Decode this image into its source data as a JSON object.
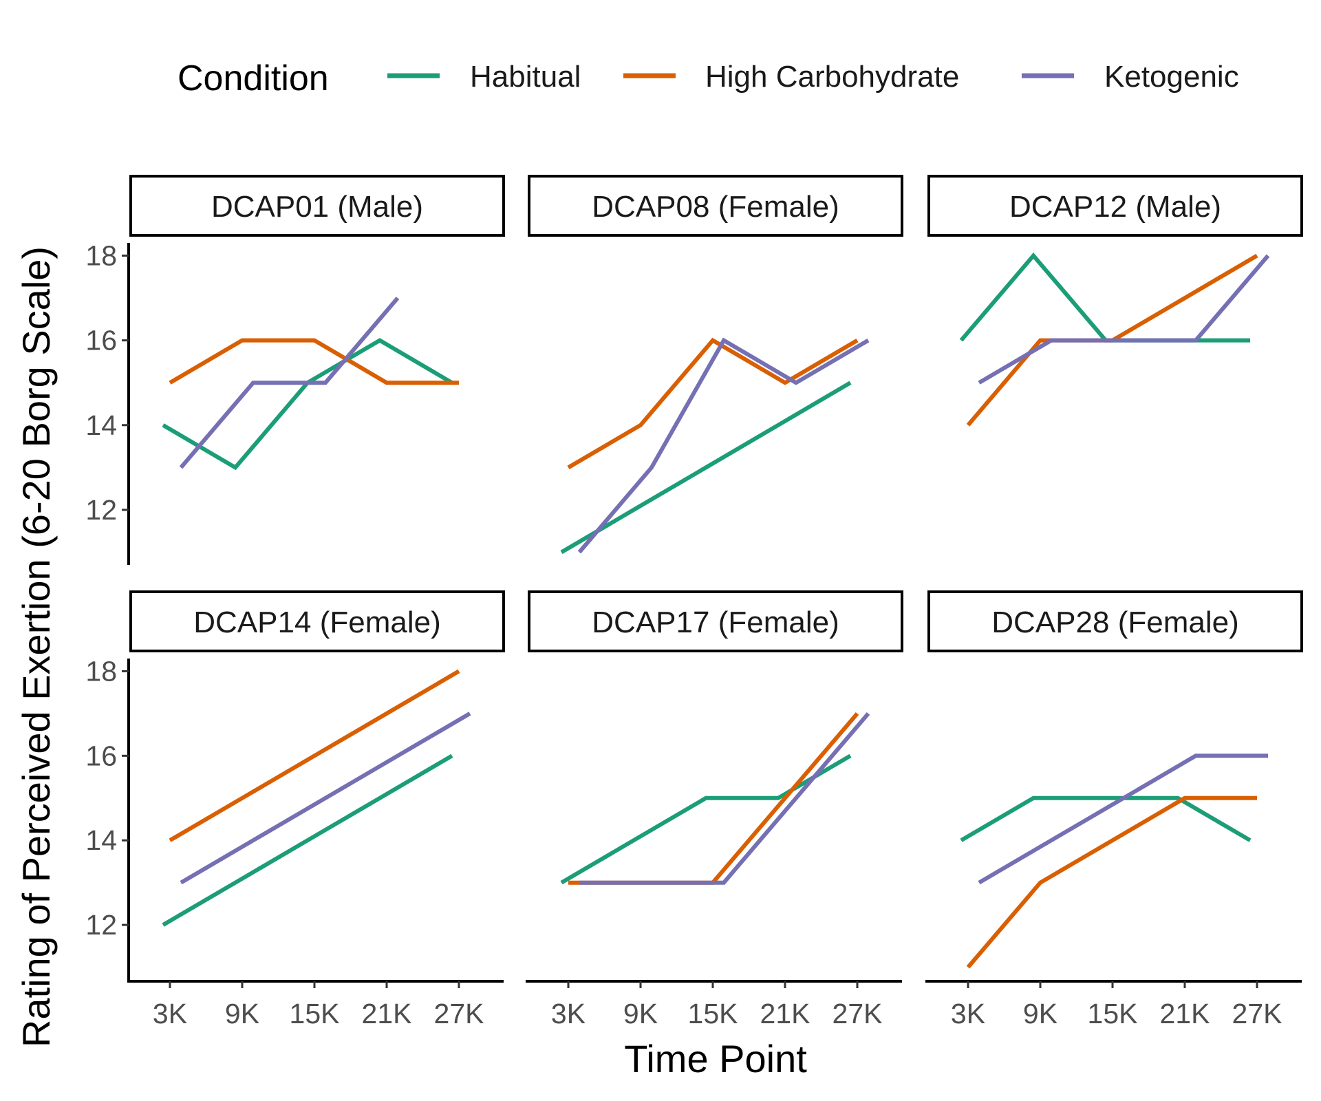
{
  "chart_data": {
    "type": "line",
    "xlabel": "Time Point",
    "ylabel": "Rating of Perceived Exertion (6-20 Borg Scale)",
    "x_categories": [
      "3K",
      "9K",
      "15K",
      "21K",
      "27K"
    ],
    "y_ticks": [
      12,
      14,
      16,
      18
    ],
    "ylim": [
      10.7,
      18.3
    ],
    "grid": false,
    "legend": {
      "title": "Condition",
      "position": "top",
      "entries": [
        {
          "name": "Habitual",
          "color": "#1b9e77"
        },
        {
          "name": "High Carbohydrate",
          "color": "#d95f02"
        },
        {
          "name": "Ketogenic",
          "color": "#7570b3"
        }
      ]
    },
    "panels": [
      {
        "label": "DCAP01 (Male)",
        "series": [
          {
            "name": "Habitual",
            "values": [
              14,
              13,
              15,
              16,
              15
            ]
          },
          {
            "name": "High Carbohydrate",
            "values": [
              15,
              16,
              16,
              15,
              15
            ]
          },
          {
            "name": "Ketogenic",
            "values": [
              13,
              15,
              15,
              17,
              null
            ]
          }
        ]
      },
      {
        "label": "DCAP08 (Female)",
        "series": [
          {
            "name": "Habitual",
            "values": [
              11,
              12,
              13,
              14,
              15
            ]
          },
          {
            "name": "High Carbohydrate",
            "values": [
              13,
              14,
              16,
              15,
              16
            ]
          },
          {
            "name": "Ketogenic",
            "values": [
              11,
              13,
              16,
              15,
              16
            ]
          }
        ]
      },
      {
        "label": "DCAP12 (Male)",
        "series": [
          {
            "name": "Habitual",
            "values": [
              16,
              18,
              16,
              16,
              16
            ]
          },
          {
            "name": "High Carbohydrate",
            "values": [
              14,
              16,
              16,
              17,
              18
            ]
          },
          {
            "name": "Ketogenic",
            "values": [
              15,
              16,
              16,
              16,
              18
            ]
          }
        ]
      },
      {
        "label": "DCAP14 (Female)",
        "series": [
          {
            "name": "Habitual",
            "values": [
              12,
              13,
              14,
              15,
              16
            ]
          },
          {
            "name": "High Carbohydrate",
            "values": [
              14,
              15,
              16,
              17,
              18
            ]
          },
          {
            "name": "Ketogenic",
            "values": [
              13,
              14,
              15,
              16,
              17
            ]
          }
        ]
      },
      {
        "label": "DCAP17 (Female)",
        "series": [
          {
            "name": "Habitual",
            "values": [
              13,
              14,
              15,
              15,
              16
            ]
          },
          {
            "name": "High Carbohydrate",
            "values": [
              13,
              13,
              13,
              15,
              17
            ]
          },
          {
            "name": "Ketogenic",
            "values": [
              13,
              13,
              13,
              15,
              17
            ]
          }
        ]
      },
      {
        "label": "DCAP28 (Female)",
        "series": [
          {
            "name": "Habitual",
            "values": [
              14,
              15,
              15,
              15,
              14
            ]
          },
          {
            "name": "High Carbohydrate",
            "values": [
              11,
              13,
              14,
              15,
              15
            ]
          },
          {
            "name": "Ketogenic",
            "values": [
              13,
              14,
              15,
              16,
              16
            ]
          }
        ]
      }
    ]
  }
}
